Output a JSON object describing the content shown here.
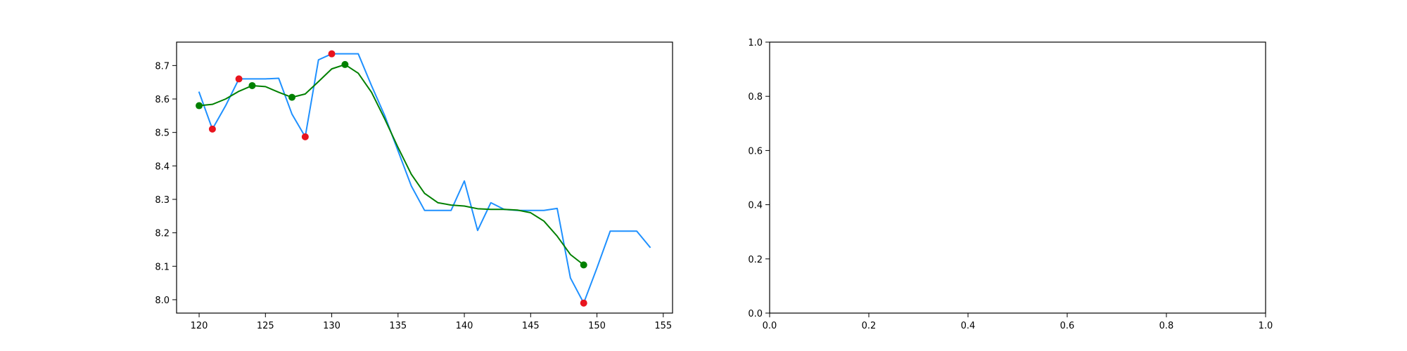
{
  "chart_data": [
    {
      "type": "line",
      "xlim": [
        118.3,
        155.7
      ],
      "ylim": [
        7.96,
        8.77
      ],
      "xticks": [
        120,
        125,
        130,
        135,
        140,
        145,
        150,
        155
      ],
      "yticks": [
        8.0,
        8.1,
        8.2,
        8.3,
        8.4,
        8.5,
        8.6,
        8.7
      ],
      "xtick_labels": [
        "120",
        "125",
        "130",
        "135",
        "140",
        "145",
        "150",
        "155"
      ],
      "ytick_labels": [
        "8.0",
        "8.1",
        "8.2",
        "8.3",
        "8.4",
        "8.5",
        "8.6",
        "8.7"
      ],
      "grid": false,
      "series": [
        {
          "type": "line",
          "color": "#1e90ff",
          "x": [
            120,
            121,
            122,
            123,
            124,
            125,
            126,
            127,
            128,
            129,
            130,
            131,
            132,
            133,
            134,
            135,
            136,
            137,
            138,
            139,
            140,
            141,
            142,
            143,
            144,
            145,
            146,
            147,
            148,
            149,
            150,
            151,
            152,
            153,
            154
          ],
          "y": [
            8.62,
            8.51,
            8.58,
            8.66,
            8.66,
            8.66,
            8.662,
            8.555,
            8.487,
            8.717,
            8.735,
            8.735,
            8.735,
            8.64,
            8.55,
            8.445,
            8.34,
            8.267,
            8.267,
            8.267,
            8.355,
            8.207,
            8.29,
            8.27,
            8.267,
            8.267,
            8.267,
            8.273,
            8.065,
            7.99,
            8.095,
            8.205,
            8.205,
            8.205,
            8.157
          ]
        },
        {
          "type": "line",
          "color": "#008000",
          "x": [
            120,
            121,
            122,
            123,
            124,
            125,
            126,
            127,
            128,
            129,
            130,
            131,
            132,
            133,
            134,
            135,
            136,
            137,
            138,
            139,
            140,
            141,
            142,
            143,
            144,
            145,
            146,
            147,
            148,
            149
          ],
          "y": [
            8.58,
            8.584,
            8.6,
            8.623,
            8.64,
            8.637,
            8.62,
            8.605,
            8.615,
            8.652,
            8.69,
            8.703,
            8.677,
            8.62,
            8.54,
            8.455,
            8.375,
            8.318,
            8.29,
            8.283,
            8.28,
            8.272,
            8.27,
            8.27,
            8.268,
            8.26,
            8.235,
            8.19,
            8.135,
            8.104
          ]
        },
        {
          "type": "scatter",
          "color": "#e8141e",
          "x": [
            121,
            123,
            128,
            130,
            149
          ],
          "y": [
            8.51,
            8.66,
            8.487,
            8.735,
            7.99
          ]
        },
        {
          "type": "scatter",
          "color": "#008000",
          "x": [
            120,
            124,
            127,
            131,
            149
          ],
          "y": [
            8.58,
            8.64,
            8.605,
            8.703,
            8.104
          ]
        }
      ]
    },
    {
      "type": "line",
      "xlim": [
        0.0,
        1.0
      ],
      "ylim": [
        0.0,
        1.0
      ],
      "xticks": [
        0.0,
        0.2,
        0.4,
        0.6,
        0.8,
        1.0
      ],
      "yticks": [
        0.0,
        0.2,
        0.4,
        0.6,
        0.8,
        1.0
      ],
      "xtick_labels": [
        "0.0",
        "0.2",
        "0.4",
        "0.6",
        "0.8",
        "1.0"
      ],
      "ytick_labels": [
        "0.0",
        "0.2",
        "0.4",
        "0.6",
        "0.8",
        "1.0"
      ],
      "grid": false,
      "series": []
    }
  ]
}
